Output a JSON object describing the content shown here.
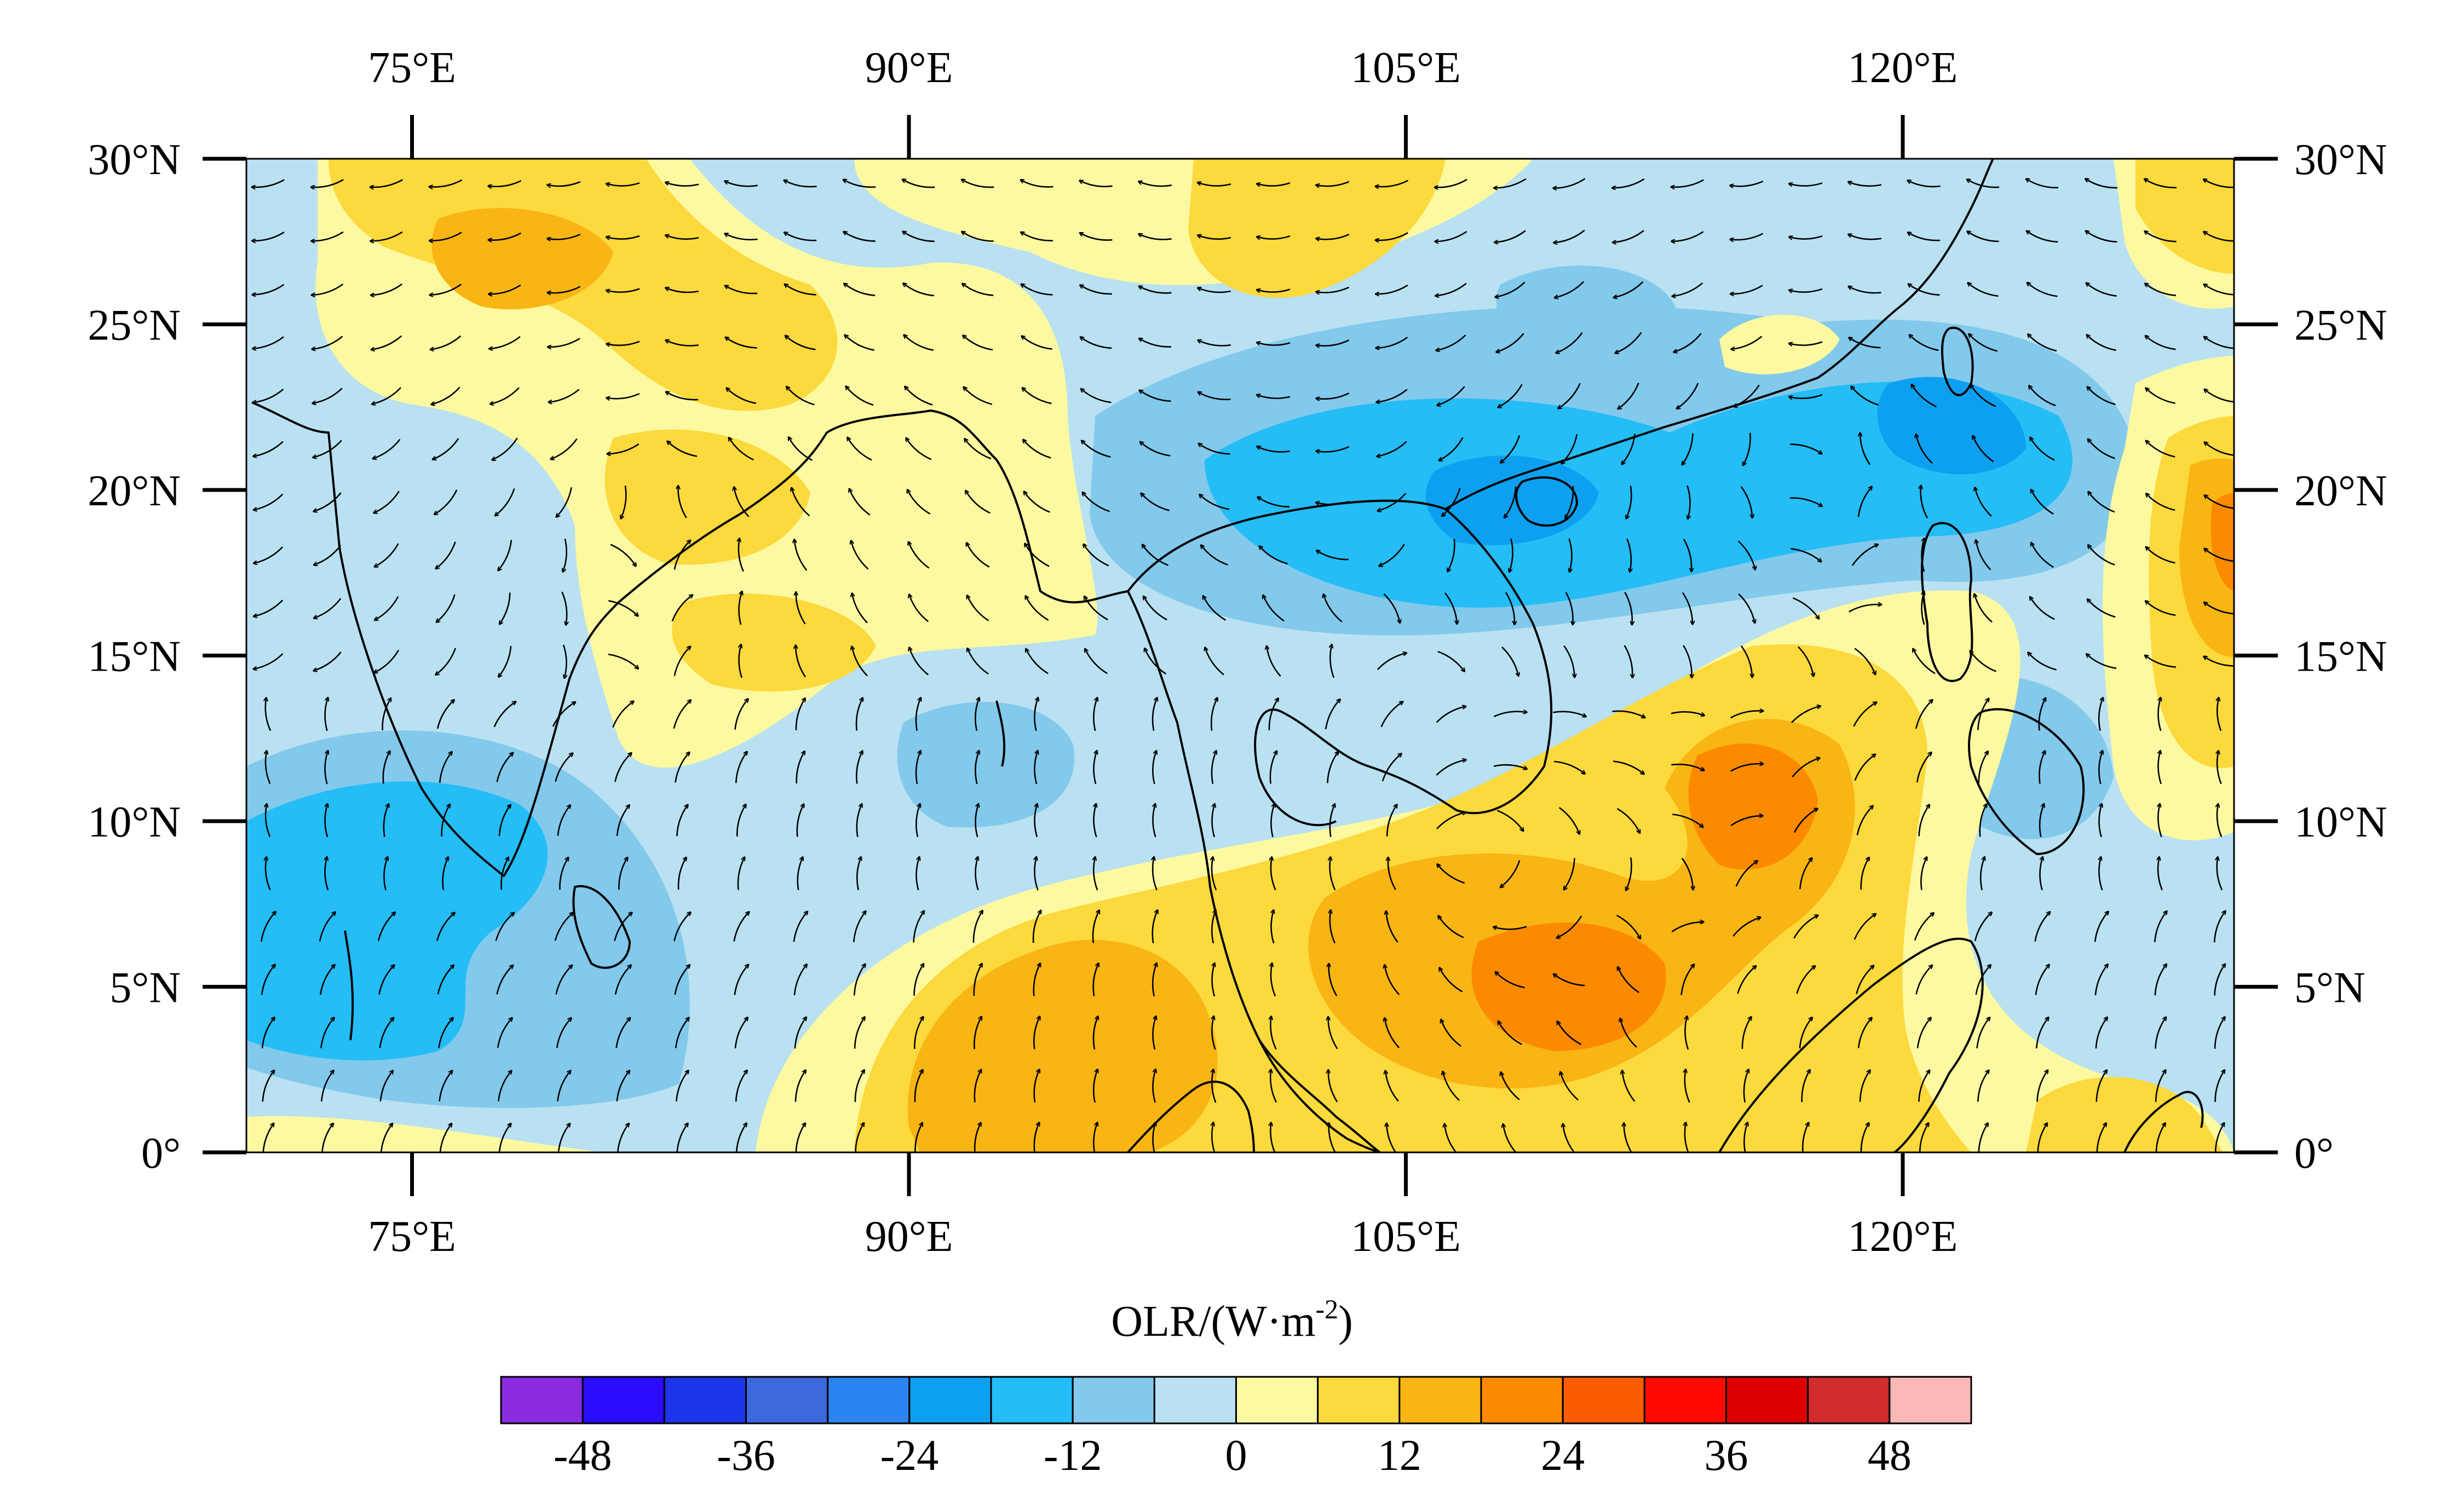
{
  "map": {
    "lon_ticks": [
      75,
      90,
      105,
      120
    ],
    "lat_ticks": [
      0,
      5,
      10,
      15,
      20,
      25,
      30
    ],
    "lon_labels": [
      "75°E",
      "90°E",
      "105°E",
      "120°E"
    ],
    "lat_labels": [
      "0°",
      "5°N",
      "10°N",
      "15°N",
      "20°N",
      "25°N",
      "30°N"
    ],
    "lon_range": [
      70,
      130
    ],
    "lat_range": [
      0,
      30
    ]
  },
  "colorbar": {
    "title": "OLR/(W·m",
    "title_sup": "-2",
    "title_close": ")",
    "colors": [
      "#8a2be2",
      "#2a0cff",
      "#1c35e8",
      "#3b68dc",
      "#2c84f0",
      "#0ea0f0",
      "#24bdf6",
      "#82c9ec",
      "#b9e1f2",
      "#fdf9a0",
      "#fcd93c",
      "#f9b513",
      "#fc8a00",
      "#fd5b00",
      "#ff0a00",
      "#dc0000",
      "#d22c2c",
      "#fcb7b7"
    ],
    "tick_labels": [
      "-48",
      "-36",
      "-24",
      "-12",
      "0",
      "12",
      "24",
      "36",
      "48"
    ],
    "tick_values": [
      -48,
      -36,
      -24,
      -12,
      0,
      12,
      24,
      36,
      48
    ],
    "bounds": [
      -54,
      54
    ]
  }
}
